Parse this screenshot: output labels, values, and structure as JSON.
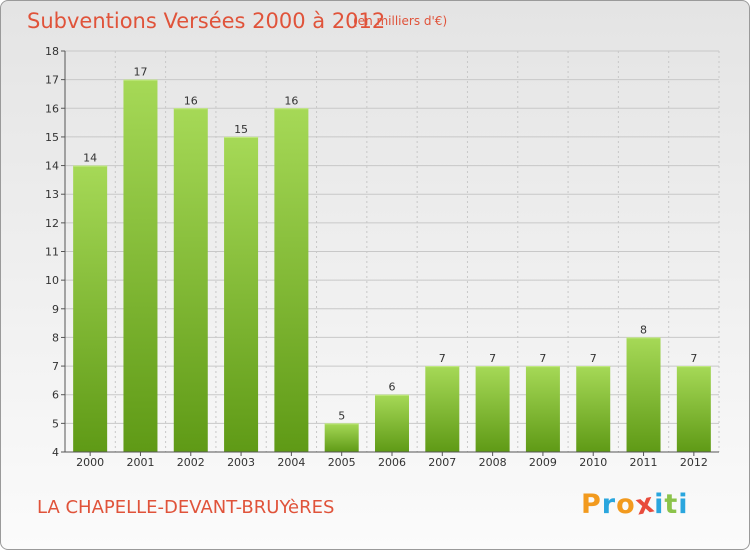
{
  "title": "Subventions Versées 2000 à 2012",
  "unit_note": "(en milliers d'€)",
  "commune": "LA CHAPELLE-DEVANT-BRUYèRES",
  "logo": {
    "text": "Proxiti",
    "letters": [
      "P",
      "r",
      "o",
      "x",
      "i",
      "t",
      "i"
    ],
    "colors": [
      "#f29a1e",
      "#2aa6de",
      "#f29a1e",
      "#e84b3c",
      "#2aa6de",
      "#8bc34a",
      "#2aa6de"
    ]
  },
  "colors": {
    "title": "#e0533a",
    "bar_top": "#a6d957",
    "bar_bottom": "#5f9a16",
    "grid": "#c8c8c8"
  },
  "chart_data": {
    "type": "bar",
    "title": "Subventions Versées 2000 à 2012",
    "xlabel": "",
    "ylabel": "",
    "categories": [
      "2000",
      "2001",
      "2002",
      "2003",
      "2004",
      "2005",
      "2006",
      "2007",
      "2008",
      "2009",
      "2010",
      "2011",
      "2012"
    ],
    "values": [
      14,
      17,
      16,
      15,
      16,
      5,
      6,
      7,
      7,
      7,
      7,
      8,
      7
    ],
    "data_labels": [
      "14",
      "17",
      "16",
      "15",
      "16",
      "5",
      "6",
      "7",
      "7",
      "7",
      "7",
      "8",
      "7"
    ],
    "ylim": [
      4,
      18
    ],
    "yticks": [
      "4",
      "5",
      "6",
      "7",
      "8",
      "9",
      "10",
      "11",
      "12",
      "13",
      "14",
      "15",
      "16",
      "17",
      "18"
    ],
    "grid": true,
    "legend": "none"
  }
}
